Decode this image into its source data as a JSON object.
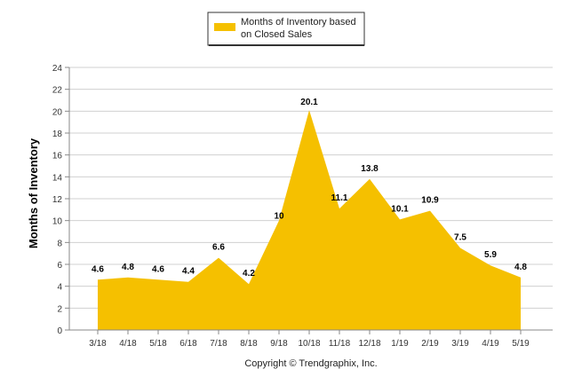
{
  "chart_data": {
    "type": "area",
    "categories": [
      "3/18",
      "4/18",
      "5/18",
      "6/18",
      "7/18",
      "8/18",
      "9/18",
      "10/18",
      "11/18",
      "12/18",
      "1/19",
      "2/19",
      "3/19",
      "4/19",
      "5/19"
    ],
    "series": [
      {
        "name": "Months of Inventory based on Closed Sales",
        "values": [
          4.6,
          4.8,
          4.6,
          4.4,
          6.6,
          4.2,
          10,
          20.1,
          11.1,
          13.8,
          10.1,
          10.9,
          7.5,
          5.9,
          4.8
        ],
        "color": "#f5c000"
      }
    ],
    "data_labels": [
      "4.6",
      "4.8",
      "4.6",
      "4.4",
      "6.6",
      "4.2",
      "10",
      "20.1",
      "11.1",
      "13.8",
      "10.1",
      "10.9",
      "7.5",
      "5.9",
      "4.8"
    ],
    "ylabel": "Months of Inventory",
    "xlabel": "",
    "ylim": [
      0,
      24
    ],
    "yticks": [
      0,
      2,
      4,
      6,
      8,
      10,
      12,
      14,
      16,
      18,
      20,
      22,
      24
    ],
    "grid": true,
    "legend_position": "top-center"
  },
  "legend": {
    "line1": "Months of Inventory based",
    "line2": "on Closed Sales"
  },
  "copyright": "Copyright © Trendgraphix, Inc."
}
